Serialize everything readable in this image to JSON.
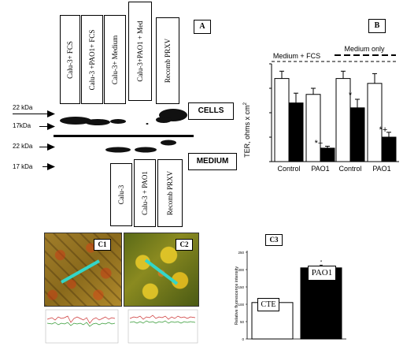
{
  "panel_a": {
    "letter": "A",
    "top_lanes": [
      "Calu-3+ FCS",
      "Calu-3 +PAO1+ FCS",
      "Calu-3+ Medium",
      "Calu-3+PAO1 + Med",
      "Recomb PRXV"
    ],
    "bottom_lanes": [
      "Calu-3",
      "Calu-3 + PAO1",
      "Recomb PRXV"
    ],
    "cells_label": "CELLS",
    "medium_label": "MEDIUM",
    "markers": {
      "cells_22": "22 kDa",
      "cells_17": "17kDa",
      "medium_22": "22 kDa",
      "medium_17": "17 kDa"
    }
  },
  "panel_b": {
    "letter": "B",
    "ylabel": "TER, ohms x cm",
    "ylabel_sup": "2",
    "group_labels": [
      "Medium + FCS",
      "Medium only"
    ],
    "annotations": {
      "star": "*",
      "star_plus": "*+"
    }
  },
  "chart_data": [
    {
      "type": "bar",
      "categories": [
        "Control",
        "PAO1",
        "Control",
        "PAO1"
      ],
      "ylabel": "TER, ohms x cm2",
      "ylim": [
        0,
        400
      ],
      "yticks": [
        0,
        100,
        200,
        300,
        400
      ],
      "series": [
        {
          "color": "#ffffff",
          "values": [
            340,
            275,
            340,
            320
          ],
          "errors": [
            30,
            25,
            30,
            40
          ]
        },
        {
          "color": "#000000",
          "values": [
            240,
            55,
            220,
            100
          ],
          "errors": [
            40,
            8,
            35,
            20
          ]
        }
      ],
      "groups": [
        "Medium + FCS",
        "Medium only"
      ]
    },
    {
      "type": "bar",
      "categories": [
        "CTE",
        "PAO1"
      ],
      "values": [
        105,
        205
      ],
      "errors": [
        5,
        8
      ],
      "colors": [
        "#ffffff",
        "#000000"
      ],
      "ylabel": "Relative fluorescence intensity",
      "ylim": [
        0,
        250
      ],
      "yticks": [
        0,
        50,
        100,
        150,
        200,
        250
      ],
      "annotations": [
        "",
        "*"
      ]
    }
  ],
  "panel_c": {
    "c1_label": "C1",
    "c2_label": "C2",
    "c3_label": "C3",
    "c3_bar_labels": [
      "CTE",
      "PAO1"
    ],
    "c3_ylabel": "Relative fluorescence intensity"
  }
}
